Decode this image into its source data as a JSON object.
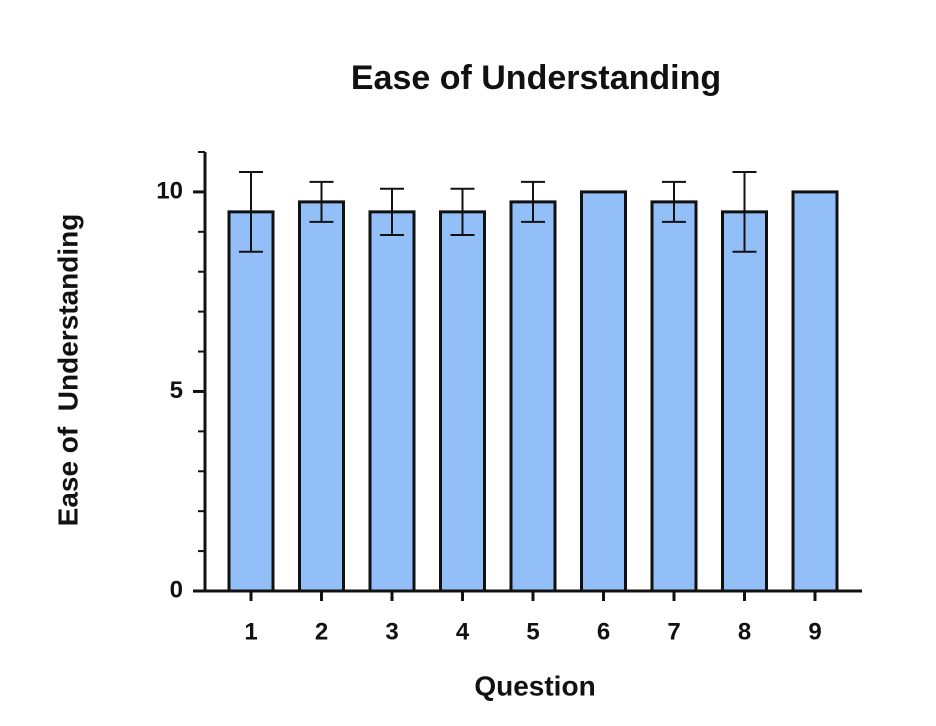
{
  "chart_data": {
    "type": "bar",
    "title": "Ease of Understanding",
    "x_label": "Question",
    "y_label": "Ease of  Understanding",
    "categories": [
      "1",
      "2",
      "3",
      "4",
      "5",
      "6",
      "7",
      "8",
      "9"
    ],
    "values": [
      9.5,
      9.75,
      9.5,
      9.5,
      9.75,
      10,
      9.75,
      9.5,
      10
    ],
    "errors": [
      1.0,
      0.5,
      0.58,
      0.58,
      0.5,
      0,
      0.5,
      1.0,
      0
    ],
    "color": "#93bff8",
    "ylim": [
      0,
      11
    ],
    "yticks": [
      0,
      5,
      10
    ],
    "yminorticks": [
      1,
      2,
      3,
      4,
      6,
      7,
      8,
      9,
      11
    ]
  }
}
